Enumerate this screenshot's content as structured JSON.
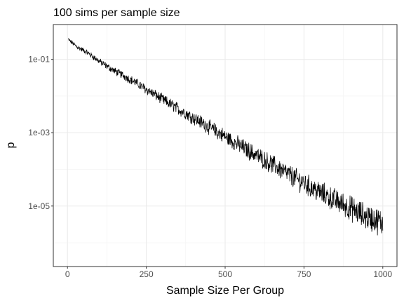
{
  "chart_data": {
    "type": "line",
    "title": "100 sims per sample size",
    "xlabel": "Sample Size Per Group",
    "ylabel": "p",
    "xlim": [
      -45,
      1045
    ],
    "ylim_log10": [
      -6.65,
      -0.05
    ],
    "y_scale": "log10",
    "x_ticks": [
      0,
      250,
      500,
      750,
      1000
    ],
    "x_tick_labels": [
      "0",
      "250",
      "500",
      "750",
      "1000"
    ],
    "y_ticks": [
      0.1,
      0.001,
      1e-05
    ],
    "y_tick_labels": [
      "1e-01",
      "1e-03",
      "1e-05"
    ],
    "grid": true,
    "legend": "none",
    "line_color": "#000000",
    "series": [
      {
        "x": [
          2,
          30,
          60,
          80,
          100,
          125,
          150,
          175,
          200,
          225,
          250,
          275,
          300,
          325,
          350,
          375,
          400,
          425,
          450,
          475,
          500,
          525,
          550,
          575,
          600,
          625,
          650,
          675,
          700,
          725,
          750,
          775,
          800,
          825,
          850,
          875,
          900,
          925,
          950,
          975,
          1000
        ],
        "y": [
          0.35,
          0.22,
          0.16,
          0.12,
          0.09,
          0.065,
          0.048,
          0.037,
          0.028,
          0.021,
          0.015,
          0.0112,
          0.0082,
          0.0061,
          0.0045,
          0.0034,
          0.0025,
          0.0019,
          0.0014,
          0.00105,
          0.00078,
          0.00058,
          0.00043,
          0.00032,
          0.00024,
          0.00018,
          0.000135,
          0.0001,
          7.4e-05,
          5.5e-05,
          4.2e-05,
          3.1e-05,
          2.4e-05,
          1.8e-05,
          1.4e-05,
          1.1e-05,
          8.5e-06,
          6.5e-06,
          5e-06,
          4.2e-06,
          3.5e-06
        ]
      }
    ]
  }
}
